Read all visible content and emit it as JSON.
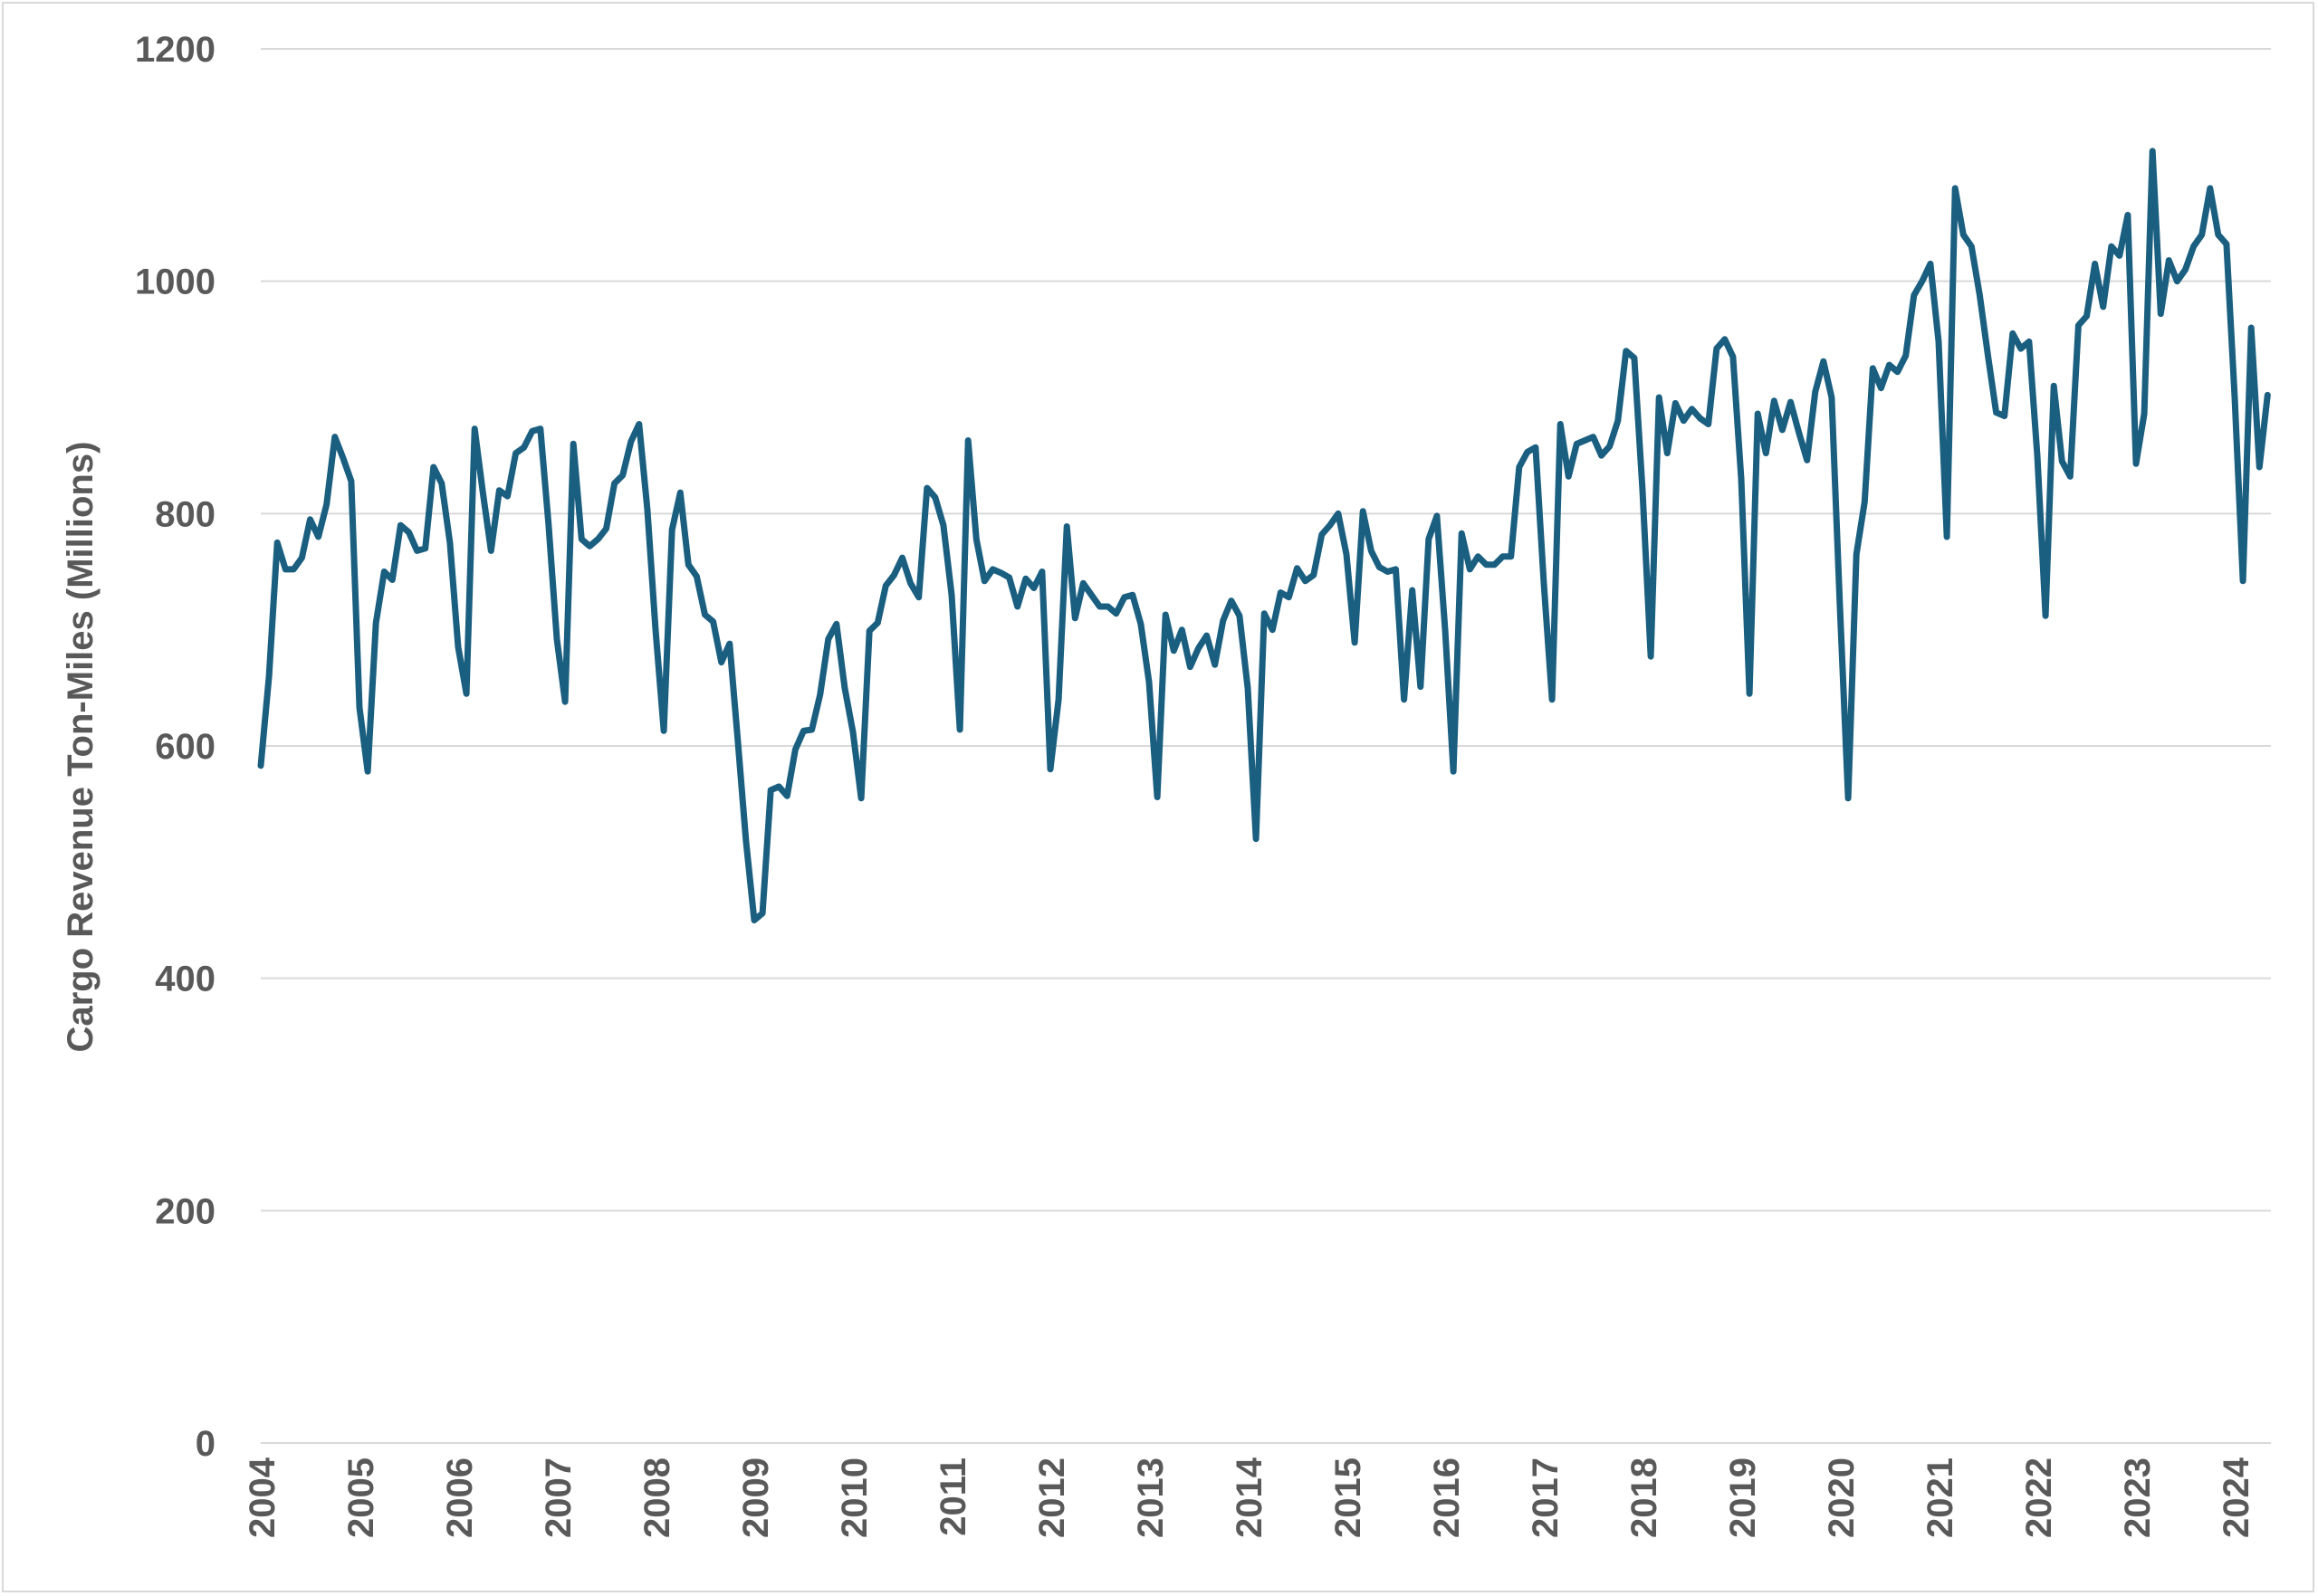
{
  "chart_data": {
    "type": "line",
    "title": "",
    "xlabel": "",
    "ylabel": "Cargo Revenue Ton-Miles (Millions)",
    "ylim": [
      0,
      1200
    ],
    "yticks": [
      0,
      200,
      400,
      600,
      800,
      1000,
      1200
    ],
    "xlim": [
      2004.0,
      2024.333
    ],
    "xticks": [
      "2004",
      "2005",
      "2006",
      "2007",
      "2008",
      "2009",
      "2010",
      "2011",
      "2012",
      "2013",
      "2014",
      "2015",
      "2016",
      "2017",
      "2018",
      "2019",
      "2020",
      "2021",
      "2022",
      "2023",
      "2024"
    ],
    "grid": "horizontal",
    "legend": "none",
    "colors": {
      "series": "#1a5e80",
      "grid": "#d9d9d9",
      "text": "#595959"
    },
    "series": [
      {
        "frequency": "monthly",
        "start": "2004-01",
        "values": [
          583,
          660,
          775,
          752,
          752,
          762,
          795,
          780,
          808,
          866,
          848,
          828,
          633,
          578,
          706,
          750,
          743,
          790,
          784,
          768,
          770,
          840,
          826,
          775,
          685,
          645,
          873,
          818,
          768,
          820,
          815,
          852,
          857,
          871,
          873,
          790,
          692,
          638,
          860,
          778,
          772,
          778,
          787,
          826,
          833,
          862,
          877,
          804,
          700,
          613,
          786,
          818,
          756,
          746,
          713,
          707,
          672,
          688,
          605,
          518,
          450,
          456,
          562,
          565,
          557,
          597,
          613,
          614,
          644,
          692,
          705,
          650,
          612,
          555,
          699,
          706,
          738,
          747,
          762,
          740,
          728,
          822,
          814,
          790,
          730,
          614,
          863,
          778,
          742,
          752,
          749,
          745,
          720,
          744,
          736,
          750,
          580,
          640,
          789,
          710,
          740,
          730,
          720,
          720,
          714,
          728,
          730,
          705,
          655,
          556,
          713,
          682,
          700,
          668,
          684,
          695,
          670,
          708,
          725,
          712,
          650,
          520,
          714,
          700,
          732,
          728,
          753,
          742,
          747,
          782,
          790,
          800,
          765,
          689,
          802,
          768,
          754,
          750,
          752,
          640,
          734,
          651,
          778,
          798,
          700,
          578,
          783,
          752,
          763,
          756,
          756,
          763,
          763,
          840,
          853,
          857,
          740,
          640,
          877,
          832,
          860,
          863,
          866,
          850,
          858,
          880,
          940,
          934,
          820,
          677,
          900,
          852,
          895,
          880,
          890,
          882,
          877,
          942,
          950,
          935,
          830,
          645,
          886,
          852,
          897,
          872,
          896,
          870,
          846,
          905,
          931,
          900,
          720,
          555,
          765,
          810,
          925,
          908,
          928,
          922,
          936,
          988,
          1000,
          1015,
          948,
          780,
          1080,
          1040,
          1030,
          988,
          936,
          887,
          884,
          955,
          942,
          948,
          850,
          712,
          910,
          845,
          832,
          962,
          970,
          1015,
          978,
          1030,
          1022,
          1057,
          843,
          886,
          1112,
          972,
          1018,
          1000,
          1010,
          1030,
          1040,
          1080,
          1040,
          1032,
          900,
          742,
          960,
          840,
          902
        ]
      }
    ]
  }
}
